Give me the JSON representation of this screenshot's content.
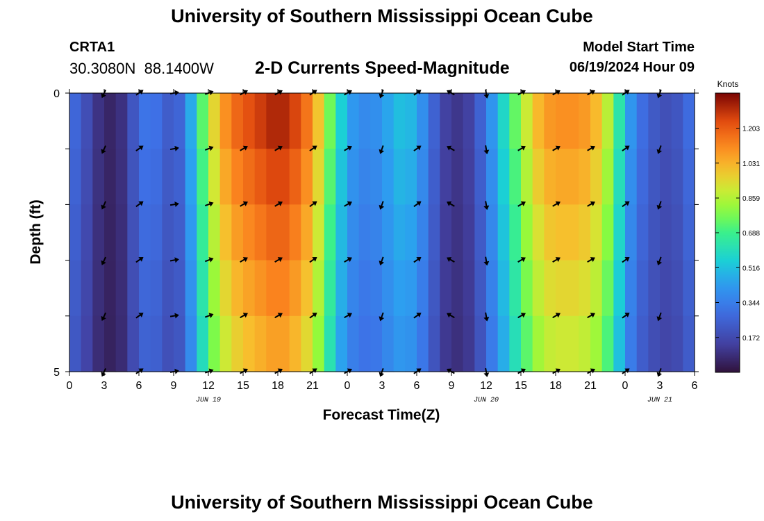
{
  "header": {
    "title": "University of Southern Mississippi Ocean Cube",
    "station_id": "CRTA1",
    "coordinates": "30.3080N  88.1400W",
    "plot_title": "2-D Currents Speed-Magnitude",
    "model_start_label": "Model Start Time",
    "model_start_value": "06/19/2024 Hour 09"
  },
  "footer": {
    "title": "University of Southern Mississippi Ocean Cube"
  },
  "chart_data": {
    "type": "heatmap",
    "title": "2-D Currents Speed-Magnitude",
    "xlabel": "Forecast Time(Z)",
    "ylabel": "Depth (ft)",
    "x_tick_labels": [
      "0",
      "3",
      "6",
      "9",
      "12",
      "15",
      "18",
      "21",
      "0",
      "3",
      "6",
      "9",
      "12",
      "15",
      "18",
      "21",
      "0",
      "3",
      "6"
    ],
    "date_labels": [
      {
        "label": "JUN 19",
        "hour": 12
      },
      {
        "label": "JUN 20",
        "hour": 36
      },
      {
        "label": "JUN 21",
        "hour": 51
      }
    ],
    "x_range_hours": [
      0,
      54
    ],
    "y_tick_labels": {
      "top": "0",
      "bottom": "5"
    },
    "y_range_ft": [
      0,
      5
    ],
    "colorbar": {
      "unit": "Knots",
      "ticks": [
        "1.203",
        "1.031",
        "0.859",
        "0.688",
        "0.516",
        "0.344",
        "0.172"
      ],
      "range": [
        0,
        1.376
      ]
    },
    "time_hours": [
      0,
      1,
      2,
      3,
      4,
      5,
      6,
      7,
      8,
      9,
      10,
      11,
      12,
      13,
      14,
      15,
      16,
      17,
      18,
      19,
      20,
      21,
      22,
      23,
      24,
      25,
      26,
      27,
      28,
      29,
      30,
      31,
      32,
      33,
      34,
      35,
      36,
      37,
      38,
      39,
      40,
      41,
      42,
      43,
      44,
      45,
      46,
      47,
      48,
      49,
      50,
      51,
      52,
      53,
      54
    ],
    "speed_by_hour": [
      0.27,
      0.22,
      0.12,
      0.06,
      0.05,
      0.12,
      0.27,
      0.3,
      0.25,
      0.18,
      0.3,
      0.55,
      0.78,
      0.95,
      1.05,
      1.1,
      1.13,
      1.17,
      1.2,
      1.17,
      1.1,
      1.0,
      0.8,
      0.58,
      0.42,
      0.35,
      0.34,
      0.38,
      0.45,
      0.48,
      0.42,
      0.3,
      0.16,
      0.1,
      0.1,
      0.16,
      0.3,
      0.45,
      0.6,
      0.75,
      0.88,
      0.97,
      1.0,
      1.0,
      1.0,
      0.96,
      0.88,
      0.7,
      0.45,
      0.3,
      0.23,
      0.18,
      0.17,
      0.22,
      0.3
    ],
    "depth_layers_ft": [
      0,
      1,
      2,
      3,
      4,
      5
    ],
    "depth_factors": [
      1.1,
      1.05,
      1.0,
      0.95,
      0.9,
      0.85
    ],
    "arrows": {
      "hours": [
        3,
        6,
        9,
        12,
        15,
        18,
        21,
        24,
        27,
        30,
        33,
        36,
        39,
        42,
        45,
        48,
        51
      ],
      "angles_deg": [
        115,
        -35,
        -10,
        -20,
        -30,
        -30,
        -35,
        -30,
        110,
        -35,
        -150,
        80,
        -30,
        -30,
        -30,
        -35,
        110
      ]
    }
  }
}
